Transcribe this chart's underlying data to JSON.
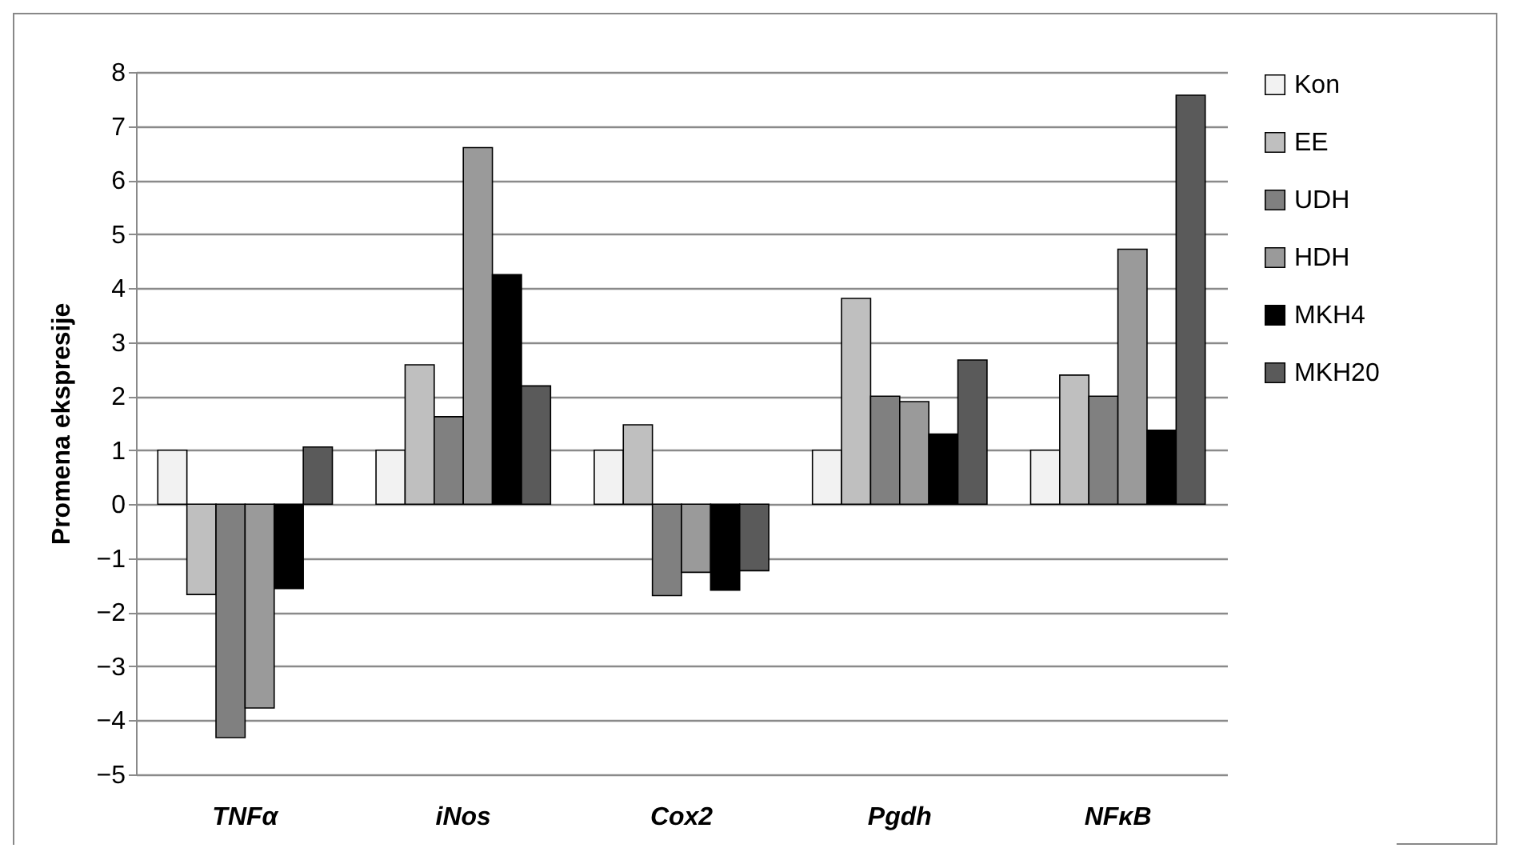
{
  "chart_data": {
    "type": "bar",
    "ylabel": "Promena ekspresije",
    "categories": [
      "TNFα",
      "iNos",
      "Cox2",
      "Pgdh",
      "NFκB"
    ],
    "series": [
      {
        "name": "Kon",
        "color": "#f2f2f2",
        "values": [
          1,
          1,
          1,
          1,
          1
        ]
      },
      {
        "name": "EE",
        "color": "#bfbfbf",
        "values": [
          -1.67,
          2.58,
          1.47,
          3.81,
          2.39
        ]
      },
      {
        "name": "UDH",
        "color": "#808080",
        "values": [
          -4.32,
          1.62,
          -1.69,
          2.0,
          2.0
        ]
      },
      {
        "name": "HDH",
        "color": "#9a9a9a",
        "values": [
          -3.77,
          6.6,
          -1.26,
          1.9,
          4.72
        ]
      },
      {
        "name": "MKH4",
        "color": "#000000",
        "values": [
          -1.56,
          4.25,
          -1.59,
          1.3,
          1.37
        ]
      },
      {
        "name": "MKH20",
        "color": "#5a5a5a",
        "values": [
          1.06,
          2.19,
          -1.23,
          2.67,
          7.57
        ]
      }
    ],
    "ylim": [
      -5,
      8
    ],
    "yticks": [
      -5,
      -4,
      -3,
      -2,
      -1,
      0,
      1,
      2,
      3,
      4,
      5,
      6,
      7,
      8
    ],
    "grid": "y",
    "legend": "right"
  }
}
